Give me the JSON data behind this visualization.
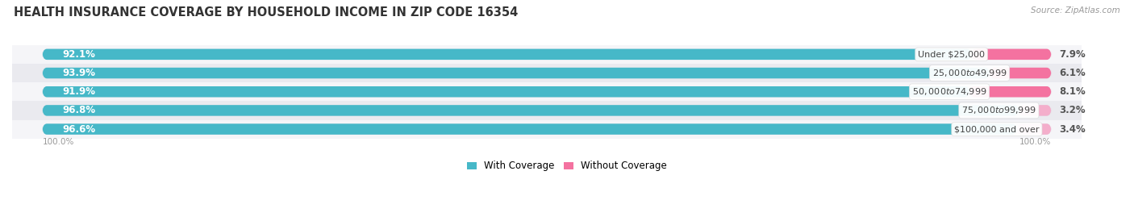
{
  "title": "HEALTH INSURANCE COVERAGE BY HOUSEHOLD INCOME IN ZIP CODE 16354",
  "source": "Source: ZipAtlas.com",
  "categories": [
    "Under $25,000",
    "$25,000 to $49,999",
    "$50,000 to $74,999",
    "$75,000 to $99,999",
    "$100,000 and over"
  ],
  "with_coverage": [
    92.1,
    93.9,
    91.9,
    96.8,
    96.6
  ],
  "without_coverage": [
    7.9,
    6.1,
    8.1,
    3.2,
    3.4
  ],
  "color_with": "#46B8C8",
  "color_without": "#F472A0",
  "color_without_light": "#F4A0C0",
  "bar_bg": "#E0E0E8",
  "row_bg_light": "#F5F5F8",
  "row_bg_dark": "#EAEAEF",
  "background": "#FFFFFF",
  "legend_with": "With Coverage",
  "legend_without": "Without Coverage",
  "title_fontsize": 10.5,
  "pct_fontsize": 8.5,
  "cat_fontsize": 8.0,
  "bar_height": 0.58,
  "without_colors": [
    "#F472A0",
    "#F472A0",
    "#F472A0",
    "#F4AECB",
    "#F4AECB"
  ]
}
